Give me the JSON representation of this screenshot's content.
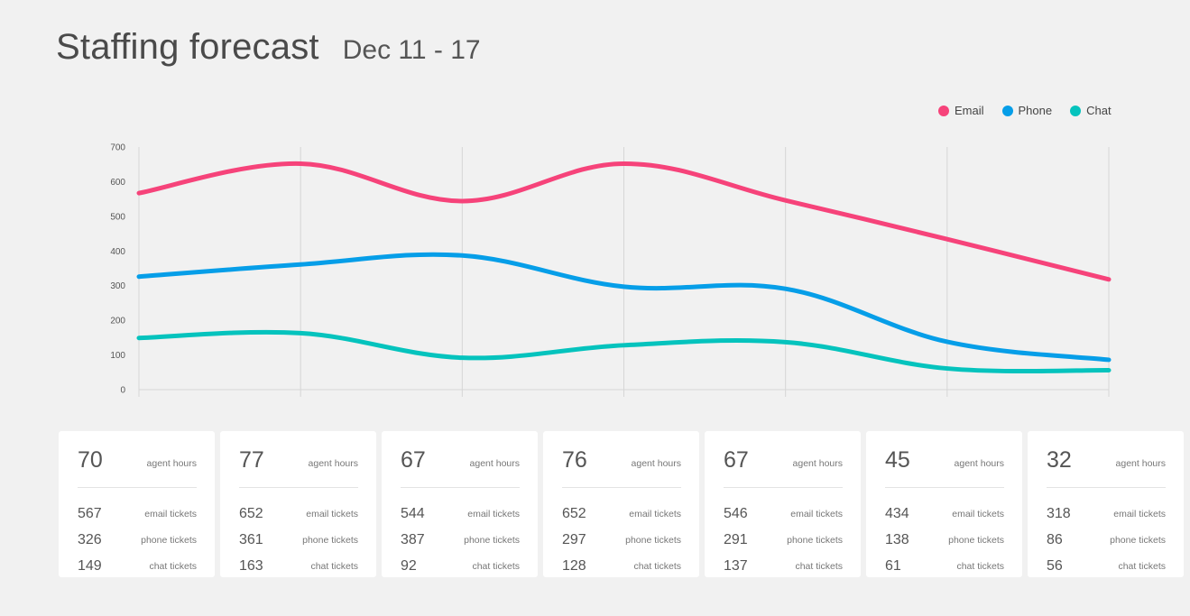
{
  "header": {
    "title": "Staffing forecast",
    "subtitle": "Dec 11 - 17"
  },
  "colors": {
    "email": "#f6437a",
    "phone": "#069ee8",
    "chat": "#05c3bd",
    "grid": "#d6d6d6",
    "axis_text": "#555555"
  },
  "legend": [
    {
      "label": "Email",
      "color": "#f6437a"
    },
    {
      "label": "Phone",
      "color": "#069ee8"
    },
    {
      "label": "Chat",
      "color": "#05c3bd"
    }
  ],
  "chart_data": {
    "type": "line",
    "x": [
      1,
      2,
      3,
      4,
      5,
      6,
      7
    ],
    "ylim": [
      0,
      700
    ],
    "yticks": [
      "0",
      "100",
      "200",
      "300",
      "400",
      "500",
      "600",
      "700"
    ],
    "grid": "vertical",
    "legend_position": "top-right",
    "series": [
      {
        "name": "Email",
        "color": "#f6437a",
        "values": [
          567,
          652,
          544,
          652,
          546,
          434,
          318
        ]
      },
      {
        "name": "Phone",
        "color": "#069ee8",
        "values": [
          326,
          361,
          387,
          297,
          291,
          138,
          86
        ]
      },
      {
        "name": "Chat",
        "color": "#05c3bd",
        "values": [
          149,
          163,
          92,
          128,
          137,
          61,
          56
        ]
      }
    ]
  },
  "cards": [
    {
      "hours": "70",
      "hours_label": "agent hours",
      "email": "567",
      "email_label": "email tickets",
      "phone": "326",
      "phone_label": "phone tickets",
      "chat": "149",
      "chat_label": "chat tickets"
    },
    {
      "hours": "77",
      "hours_label": "agent hours",
      "email": "652",
      "email_label": "email tickets",
      "phone": "361",
      "phone_label": "phone tickets",
      "chat": "163",
      "chat_label": "chat tickets"
    },
    {
      "hours": "67",
      "hours_label": "agent hours",
      "email": "544",
      "email_label": "email tickets",
      "phone": "387",
      "phone_label": "phone tickets",
      "chat": "92",
      "chat_label": "chat tickets"
    },
    {
      "hours": "76",
      "hours_label": "agent hours",
      "email": "652",
      "email_label": "email tickets",
      "phone": "297",
      "phone_label": "phone tickets",
      "chat": "128",
      "chat_label": "chat tickets"
    },
    {
      "hours": "67",
      "hours_label": "agent hours",
      "email": "546",
      "email_label": "email tickets",
      "phone": "291",
      "phone_label": "phone tickets",
      "chat": "137",
      "chat_label": "chat tickets"
    },
    {
      "hours": "45",
      "hours_label": "agent hours",
      "email": "434",
      "email_label": "email tickets",
      "phone": "138",
      "phone_label": "phone tickets",
      "chat": "61",
      "chat_label": "chat tickets"
    },
    {
      "hours": "32",
      "hours_label": "agent hours",
      "email": "318",
      "email_label": "email tickets",
      "phone": "86",
      "phone_label": "phone tickets",
      "chat": "56",
      "chat_label": "chat tickets"
    }
  ]
}
